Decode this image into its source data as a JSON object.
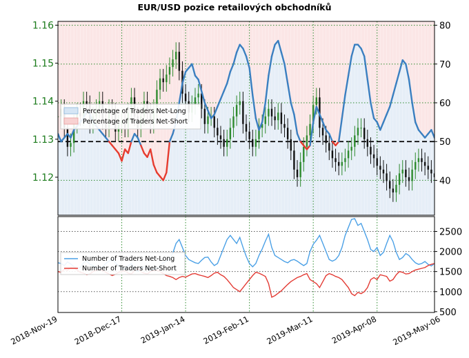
{
  "chart_data": [
    {
      "type": "line",
      "title": "EUR/USD pozice retailových obchodníků",
      "left_axis": {
        "ticks": [
          "1.12",
          "1.13",
          "1.14",
          "1.15",
          "1.16"
        ],
        "range": [
          1.11,
          1.161
        ],
        "color": "#1a7a1a"
      },
      "right_axis": {
        "ticks": [
          "40",
          "50",
          "60",
          "70",
          "80"
        ],
        "range": [
          31,
          81
        ]
      },
      "x_ticks": [
        "2018-Nov-19",
        "2018-Dec-17",
        "2019-Jan-14",
        "2019-Feb-11",
        "2019-Mar-11",
        "2019-Apr-08",
        "2019-May-06"
      ],
      "x_index_range": [
        0,
        118
      ],
      "x_tick_index": [
        0,
        20,
        40,
        60,
        80,
        100,
        120
      ],
      "reference_line": 50,
      "legend": [
        "Percentage of Traders Net-Long",
        "Percentage of Traders Net-Short"
      ],
      "legend_position": "upper-left",
      "net_long_pct": [
        52,
        50,
        51,
        52,
        51,
        53,
        54,
        55,
        56,
        58,
        57,
        55,
        54,
        53,
        52,
        51,
        50,
        49,
        48,
        47,
        45,
        48,
        47,
        50,
        52,
        51,
        49,
        47,
        46,
        48,
        44,
        42,
        41,
        40,
        42,
        50,
        52,
        55,
        60,
        65,
        68,
        69,
        70,
        67,
        66,
        63,
        60,
        58,
        56,
        57,
        59,
        61,
        63,
        65,
        68,
        70,
        73,
        75,
        74,
        72,
        69,
        62,
        56,
        53,
        55,
        60,
        67,
        72,
        75,
        76,
        73,
        70,
        65,
        60,
        57,
        52,
        50,
        49,
        48,
        49,
        55,
        59,
        57,
        55,
        53,
        52,
        50,
        49,
        50,
        56,
        62,
        67,
        72,
        75,
        75,
        74,
        72,
        66,
        60,
        56,
        55,
        53,
        55,
        57,
        59,
        62,
        65,
        68,
        71,
        70,
        66,
        60,
        55,
        53,
        52,
        51,
        52,
        53,
        51,
        50
      ],
      "ohlc_price": [
        1.136,
        1.138,
        1.133,
        1.128,
        1.129,
        1.134,
        1.137,
        1.136,
        1.14,
        1.139,
        1.134,
        1.136,
        1.138,
        1.14,
        1.135,
        1.133,
        1.138,
        1.137,
        1.132,
        1.134,
        1.135,
        1.133,
        1.137,
        1.141,
        1.136,
        1.133,
        1.136,
        1.14,
        1.137,
        1.134,
        1.138,
        1.143,
        1.146,
        1.145,
        1.147,
        1.149,
        1.151,
        1.153,
        1.148,
        1.142,
        1.14,
        1.137,
        1.139,
        1.141,
        1.142,
        1.138,
        1.134,
        1.136,
        1.136,
        1.133,
        1.131,
        1.13,
        1.128,
        1.13,
        1.133,
        1.136,
        1.139,
        1.14,
        1.134,
        1.132,
        1.13,
        1.128,
        1.13,
        1.133,
        1.134,
        1.136,
        1.138,
        1.136,
        1.135,
        1.137,
        1.134,
        1.133,
        1.13,
        1.127,
        1.122,
        1.12,
        1.124,
        1.128,
        1.131,
        1.134,
        1.139,
        1.141,
        1.133,
        1.131,
        1.129,
        1.127,
        1.125,
        1.124,
        1.123,
        1.124,
        1.125,
        1.127,
        1.128,
        1.131,
        1.133,
        1.133,
        1.13,
        1.128,
        1.126,
        1.125,
        1.123,
        1.122,
        1.121,
        1.119,
        1.117,
        1.116,
        1.118,
        1.121,
        1.122,
        1.12,
        1.119,
        1.122,
        1.124,
        1.125,
        1.124,
        1.123,
        1.122,
        1.121,
        1.12,
        1.121
      ],
      "lower_panel": {
        "right_axis": {
          "ticks": [
            "500",
            "1000",
            "1500",
            "2000",
            "2500"
          ],
          "range": [
            480,
            2870
          ]
        },
        "legend": [
          "Number of Traders Net-Long",
          "Number of Traders Net-Short"
        ],
        "legend_position": "left",
        "net_long_count": [
          1720,
          1700,
          1650,
          1740,
          1690,
          1620,
          1580,
          1600,
          1720,
          1760,
          1680,
          1650,
          1600,
          1580,
          1620,
          1700,
          1760,
          1800,
          1720,
          1650,
          1600,
          1560,
          1640,
          1700,
          1560,
          1500,
          1580,
          1620,
          1600,
          1520,
          1560,
          1580,
          1640,
          1720,
          1760,
          1800,
          1960,
          2200,
          2300,
          2100,
          1900,
          1800,
          1760,
          1720,
          1700,
          1780,
          1850,
          1860,
          1740,
          1650,
          1700,
          1900,
          2100,
          2300,
          2400,
          2300,
          2200,
          2350,
          2100,
          1880,
          1700,
          1620,
          1700,
          1900,
          2060,
          2260,
          2430,
          2100,
          1900,
          1850,
          1800,
          1750,
          1720,
          1780,
          1800,
          1760,
          1700,
          1650,
          1700,
          2000,
          2180,
          2280,
          2400,
          2200,
          2000,
          1800,
          1760,
          1800,
          1900,
          2100,
          2400,
          2600,
          2800,
          2820,
          2650,
          2700,
          2500,
          2300,
          2050,
          2000,
          2100,
          1900,
          1980,
          2200,
          2400,
          2250,
          1980,
          1800,
          1850,
          1950,
          1900,
          1800,
          1720,
          1680,
          1700,
          1750,
          1680,
          1640,
          1700,
          1720
        ],
        "net_short_count": [
          1500,
          1480,
          1560,
          1530,
          1600,
          1590,
          1540,
          1480,
          1460,
          1420,
          1440,
          1500,
          1530,
          1560,
          1520,
          1480,
          1440,
          1400,
          1430,
          1480,
          1500,
          1520,
          1460,
          1440,
          1520,
          1580,
          1500,
          1460,
          1440,
          1500,
          1520,
          1540,
          1500,
          1450,
          1400,
          1380,
          1350,
          1300,
          1350,
          1380,
          1360,
          1400,
          1440,
          1450,
          1420,
          1400,
          1380,
          1350,
          1400,
          1460,
          1480,
          1420,
          1380,
          1300,
          1200,
          1100,
          1050,
          1000,
          1100,
          1200,
          1300,
          1400,
          1480,
          1460,
          1420,
          1380,
          1200,
          860,
          900,
          960,
          1020,
          1100,
          1180,
          1250,
          1300,
          1350,
          1380,
          1420,
          1450,
          1300,
          1250,
          1200,
          1100,
          1250,
          1400,
          1450,
          1420,
          1380,
          1350,
          1300,
          1200,
          1100,
          950,
          900,
          980,
          950,
          1000,
          1100,
          1300,
          1350,
          1300,
          1420,
          1400,
          1380,
          1260,
          1300,
          1420,
          1500,
          1480,
          1440,
          1450,
          1500,
          1540,
          1560,
          1580,
          1600,
          1650,
          1680,
          1700,
          1720
        ]
      }
    }
  ]
}
